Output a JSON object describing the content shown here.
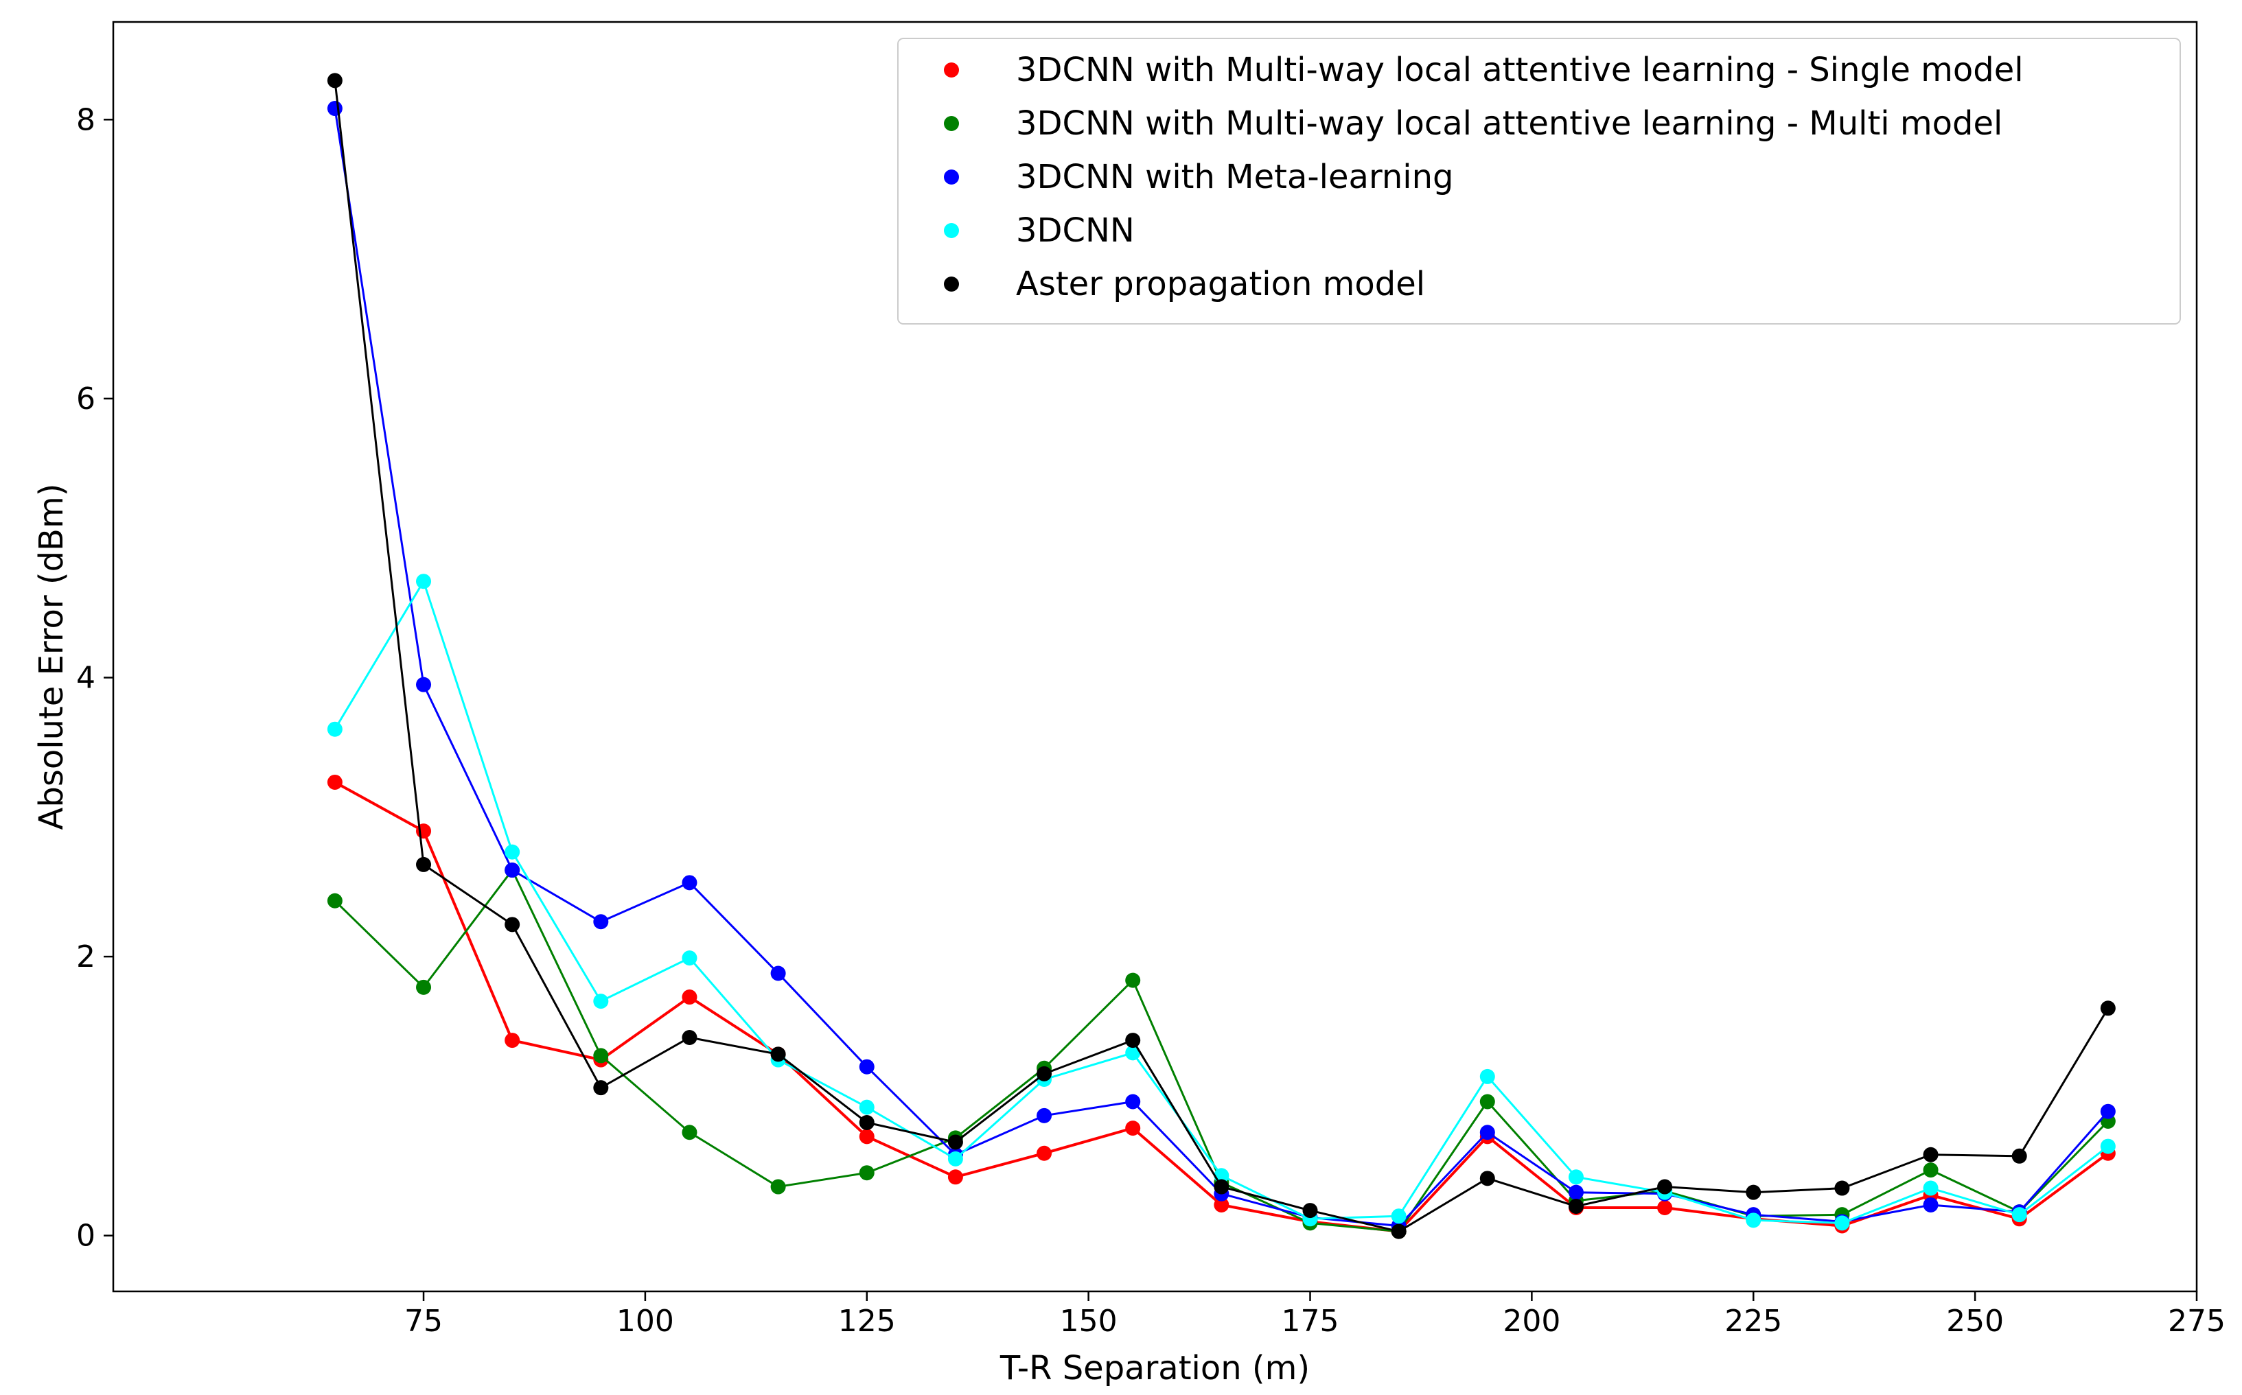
{
  "chart_data": {
    "type": "line",
    "title": "",
    "xlabel": "T-R Separation (m)",
    "ylabel": "Absolute Error (dBm)",
    "xlim": [
      40,
      275
    ],
    "ylim": [
      -0.4,
      8.7
    ],
    "xticks": [
      75,
      100,
      125,
      150,
      175,
      200,
      225,
      250,
      275
    ],
    "yticks": [
      0,
      2,
      4,
      6,
      8
    ],
    "legend_position": "top-right",
    "grid": false,
    "x": [
      65,
      75,
      85,
      95,
      105,
      115,
      125,
      135,
      145,
      155,
      165,
      175,
      185,
      195,
      205,
      215,
      225,
      235,
      245,
      255,
      265
    ],
    "series": [
      {
        "name": "3DCNN with Multi-way local attentive learning - Single model",
        "color": "#ff0000",
        "values": [
          3.25,
          2.9,
          1.4,
          1.26,
          1.71,
          1.3,
          0.71,
          0.42,
          0.59,
          0.77,
          0.22,
          0.1,
          0.03,
          0.71,
          0.2,
          0.2,
          0.12,
          0.07,
          0.29,
          0.12,
          0.59
        ]
      },
      {
        "name": "3DCNN with Multi-way local attentive learning - Multi model",
        "color": "#008000",
        "values": [
          2.4,
          1.78,
          2.62,
          1.29,
          0.74,
          0.35,
          0.45,
          0.7,
          1.2,
          1.83,
          0.38,
          0.09,
          0.03,
          0.96,
          0.25,
          0.32,
          0.14,
          0.15,
          0.47,
          0.17,
          0.82
        ]
      },
      {
        "name": "3DCNN with Meta-learning",
        "color": "#0000ff",
        "values": [
          8.08,
          3.95,
          2.62,
          2.25,
          2.53,
          1.88,
          1.21,
          0.58,
          0.86,
          0.96,
          0.3,
          0.13,
          0.07,
          0.74,
          0.31,
          0.3,
          0.15,
          0.1,
          0.22,
          0.17,
          0.89
        ]
      },
      {
        "name": "3DCNN",
        "color": "#00ffff",
        "values": [
          3.63,
          4.69,
          2.75,
          1.68,
          1.99,
          1.26,
          0.92,
          0.55,
          1.12,
          1.31,
          0.43,
          0.12,
          0.14,
          1.14,
          0.42,
          0.31,
          0.11,
          0.09,
          0.34,
          0.15,
          0.64
        ]
      },
      {
        "name": "Aster propagation model",
        "color": "#000000",
        "values": [
          8.28,
          2.66,
          2.23,
          1.06,
          1.42,
          1.3,
          0.81,
          0.67,
          1.16,
          1.4,
          0.35,
          0.18,
          0.03,
          0.41,
          0.21,
          0.35,
          0.31,
          0.34,
          0.58,
          0.57,
          1.63
        ]
      }
    ]
  }
}
